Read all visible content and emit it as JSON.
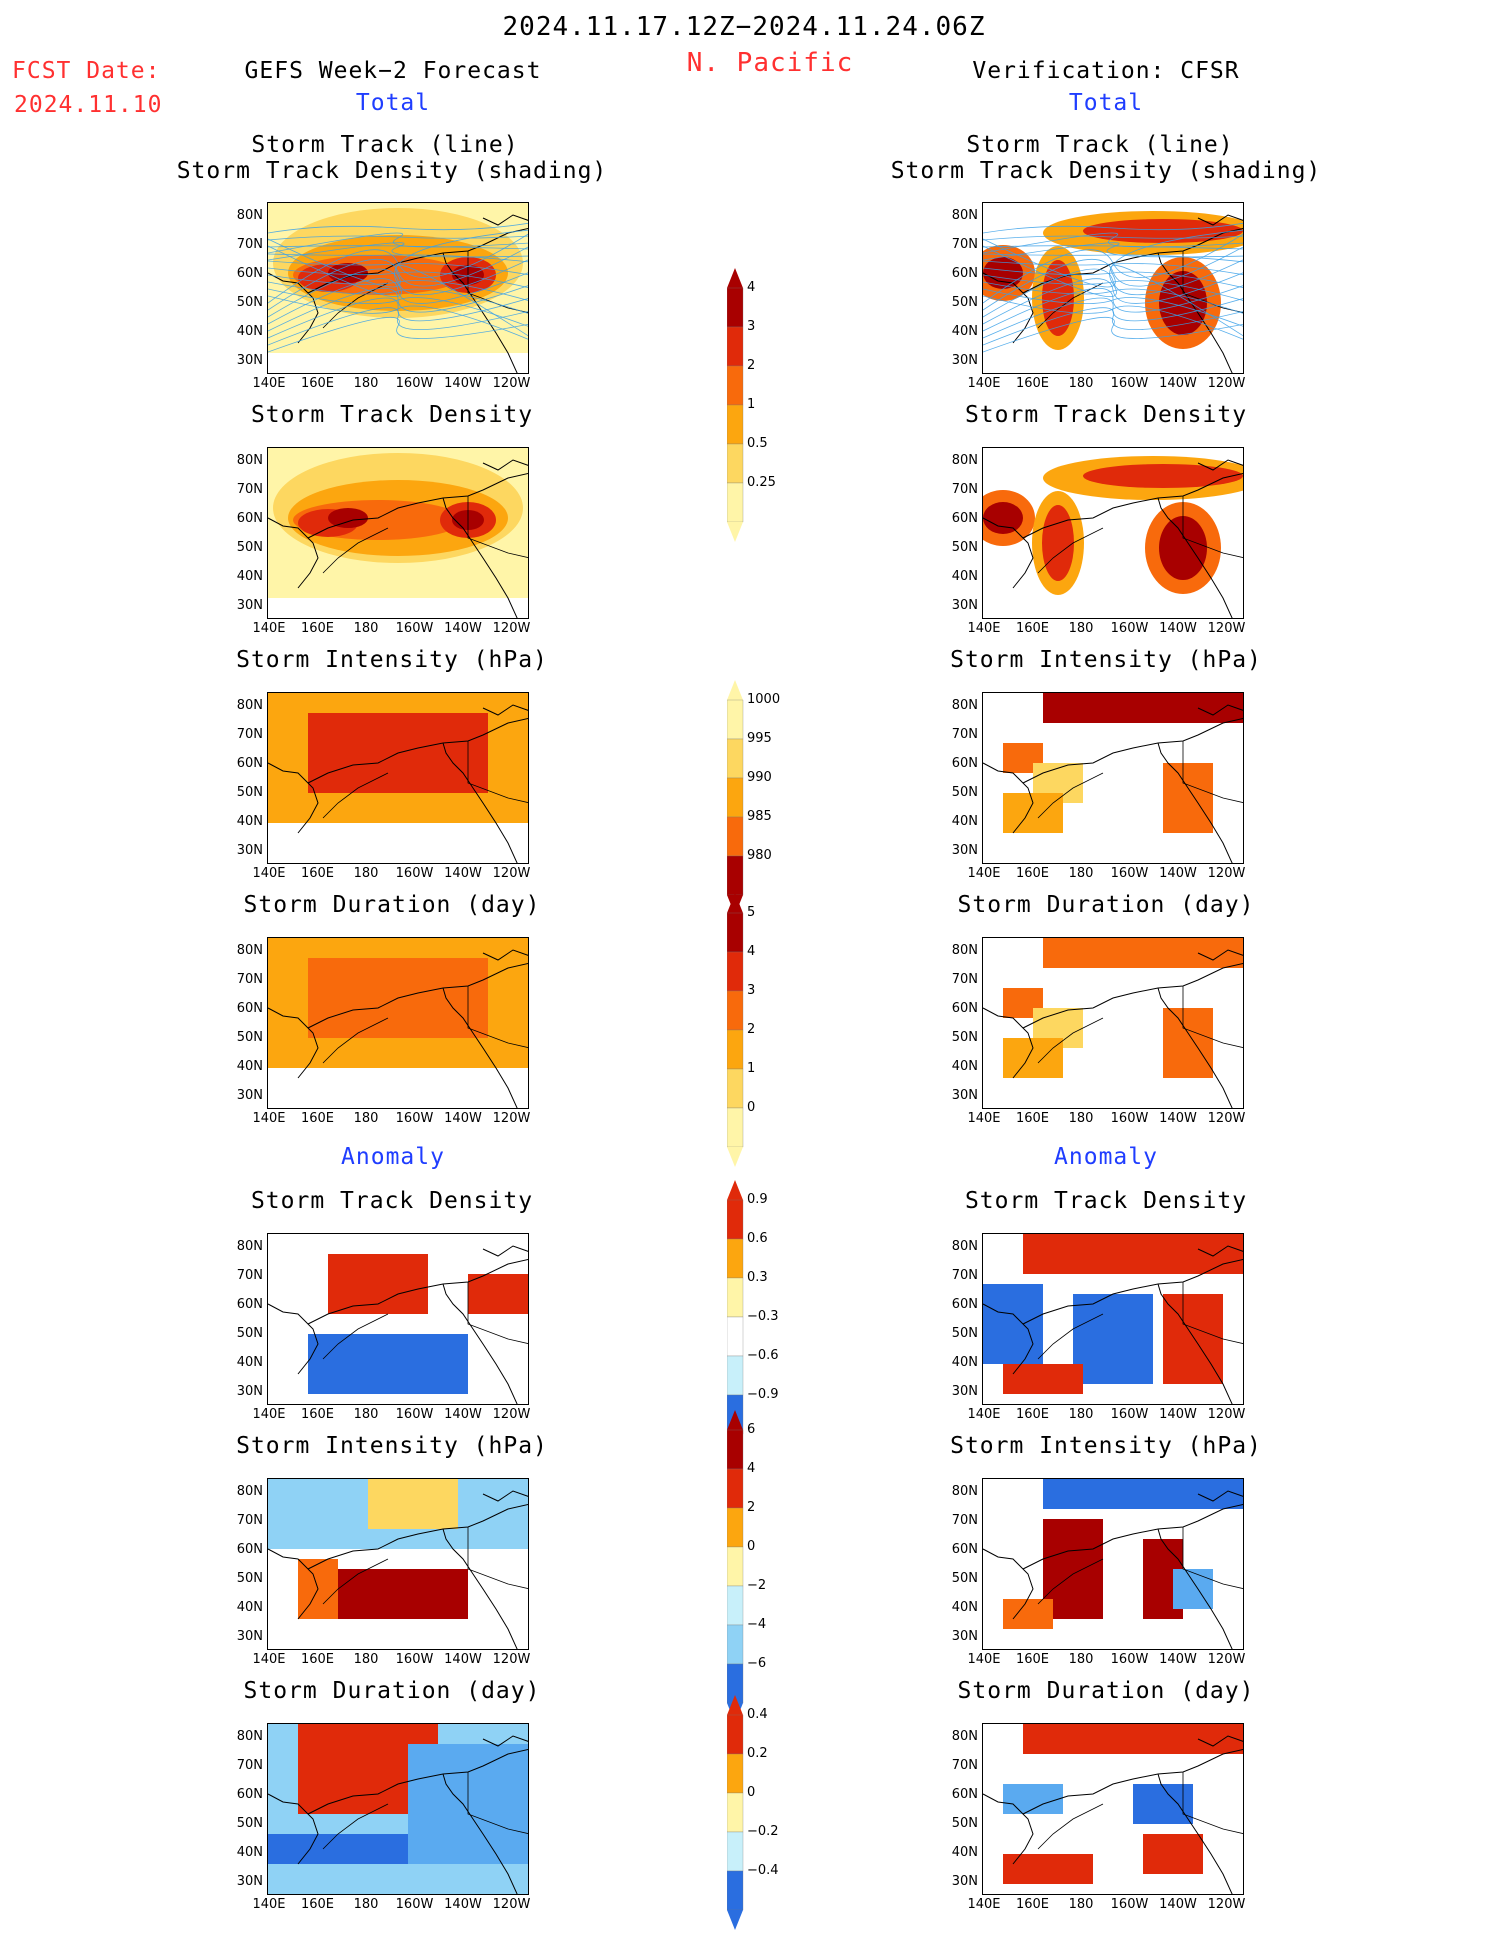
{
  "header": {
    "period": "2024.11.17.12Z−2024.11.24.06Z",
    "region": "N. Pacific",
    "fcst_label": "FCST Date:",
    "fcst_date": "2024.11.10",
    "left_title": "GEFS Week−2 Forecast",
    "right_title": "Verification: CFSR",
    "total_left": "Total",
    "total_right": "Total",
    "anomaly_left": "Anomaly",
    "anomaly_right": "Anomaly"
  },
  "panels": {
    "p1_title_a": "Storm Track (line)",
    "p1_title_b": "Storm Track Density (shading)",
    "p2_title": "Storm Track Density",
    "p3_title": "Storm Intensity (hPa)",
    "p4_title": "Storm Duration (day)",
    "p5_title": "Storm Track Density",
    "p6_title": "Storm Intensity (hPa)",
    "p7_title": "Storm Duration (day)"
  },
  "axes": {
    "y_ticks": [
      "80N",
      "70N",
      "60N",
      "50N",
      "40N",
      "30N"
    ],
    "x_ticks": [
      "140E",
      "160E",
      "180",
      "160W",
      "140W",
      "120W"
    ]
  },
  "colorbars": {
    "density_total": [
      "4",
      "3",
      "2",
      "1",
      "0.5",
      "0.25"
    ],
    "intensity_total": [
      "1000",
      "995",
      "990",
      "985",
      "980"
    ],
    "duration_total": [
      "5",
      "4",
      "3",
      "2",
      "1",
      "0"
    ],
    "density_anom": [
      "0.9",
      "0.6",
      "0.3",
      "−0.3",
      "−0.6",
      "−0.9"
    ],
    "intensity_anom": [
      "6",
      "4",
      "2",
      "0",
      "−2",
      "−4",
      "−6"
    ],
    "duration_anom": [
      "0.4",
      "0.2",
      "0",
      "−0.2",
      "−0.4"
    ]
  },
  "colors": {
    "warm": [
      "#fff5a8",
      "#fdd760",
      "#fca60f",
      "#f86a0c",
      "#e02a0a",
      "#a80000"
    ],
    "cool": [
      "#c8f0fa",
      "#8fd2f5",
      "#5aaaf0",
      "#2a6ee0",
      "#1448c8"
    ],
    "track_line": "#3aa0e8",
    "title_red": "#ff3030",
    "title_blue": "#1f3dff"
  },
  "chart_data": [
    {
      "type": "heatmap",
      "title": "Storm Track (line) / Storm Track Density (shading)",
      "source": "GEFS Week−2 Forecast",
      "section": "Total"
    },
    {
      "type": "heatmap",
      "title": "Storm Track Density",
      "source": "GEFS Week−2 Forecast",
      "section": "Total",
      "legend_levels": [
        0.25,
        0.5,
        1,
        2,
        3,
        4
      ]
    },
    {
      "type": "heatmap",
      "title": "Storm Intensity (hPa)",
      "source": "GEFS Week−2 Forecast",
      "section": "Total",
      "legend_levels": [
        1000,
        995,
        990,
        985,
        980
      ]
    },
    {
      "type": "heatmap",
      "title": "Storm Duration (day)",
      "source": "GEFS Week−2 Forecast",
      "section": "Total",
      "legend_levels": [
        0,
        1,
        2,
        3,
        4,
        5
      ]
    },
    {
      "type": "heatmap",
      "title": "Storm Track Density",
      "source": "GEFS Week−2 Forecast",
      "section": "Anomaly",
      "legend_levels": [
        -0.9,
        -0.6,
        -0.3,
        0.3,
        0.6,
        0.9
      ]
    },
    {
      "type": "heatmap",
      "title": "Storm Intensity (hPa)",
      "source": "GEFS Week−2 Forecast",
      "section": "Anomaly",
      "legend_levels": [
        -6,
        -4,
        -2,
        0,
        2,
        4,
        6
      ]
    },
    {
      "type": "heatmap",
      "title": "Storm Duration (day)",
      "source": "GEFS Week−2 Forecast",
      "section": "Anomaly",
      "legend_levels": [
        -0.4,
        -0.2,
        0,
        0.2,
        0.4
      ]
    },
    {
      "type": "heatmap",
      "title": "Storm Track (line) / Storm Track Density (shading)",
      "source": "Verification: CFSR",
      "section": "Total"
    },
    {
      "type": "heatmap",
      "title": "Storm Track Density",
      "source": "Verification: CFSR",
      "section": "Total"
    },
    {
      "type": "heatmap",
      "title": "Storm Intensity (hPa)",
      "source": "Verification: CFSR",
      "section": "Total"
    },
    {
      "type": "heatmap",
      "title": "Storm Duration (day)",
      "source": "Verification: CFSR",
      "section": "Total"
    },
    {
      "type": "heatmap",
      "title": "Storm Track Density",
      "source": "Verification: CFSR",
      "section": "Anomaly"
    },
    {
      "type": "heatmap",
      "title": "Storm Intensity (hPa)",
      "source": "Verification: CFSR",
      "section": "Anomaly"
    },
    {
      "type": "heatmap",
      "title": "Storm Duration (day)",
      "source": "Verification: CFSR",
      "section": "Anomaly"
    }
  ]
}
